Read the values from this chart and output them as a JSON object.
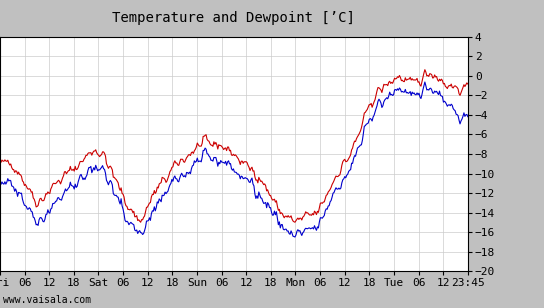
{
  "title": "Temperature and Dewpoint [’C]",
  "ylim": [
    -20,
    4
  ],
  "yticks": [
    -20,
    -18,
    -16,
    -14,
    -12,
    -10,
    -8,
    -6,
    -4,
    -2,
    0,
    2,
    4
  ],
  "xlabel_bottom": "www.vaisala.com",
  "xtick_labels": [
    "Fri",
    "06",
    "12",
    "18",
    "Sat",
    "06",
    "12",
    "18",
    "Sun",
    "06",
    "12",
    "18",
    "Mon",
    "06",
    "12",
    "18",
    "Tue",
    "06",
    "12",
    "23:45"
  ],
  "temp_color": "#cc0000",
  "dewpoint_color": "#0000cc",
  "plot_bg_color": "#ffffff",
  "outer_bg_color": "#c0c0c0",
  "grid_color": "#cccccc",
  "linewidth": 0.8,
  "n_points": 480,
  "title_fontsize": 10,
  "tick_fontsize": 8
}
